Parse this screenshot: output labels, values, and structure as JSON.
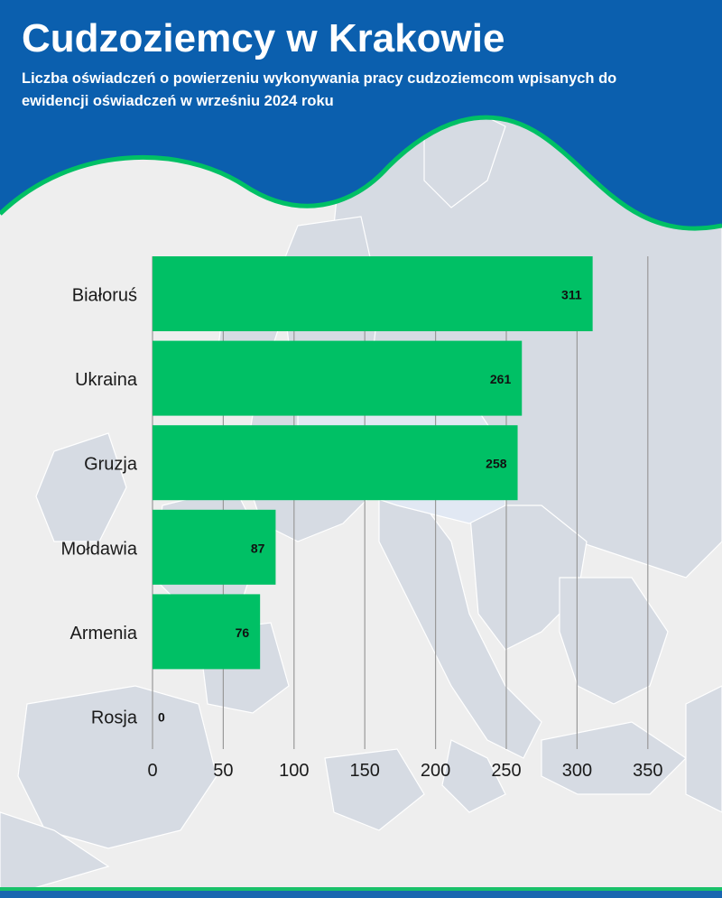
{
  "header": {
    "title": "Cudzoziemcy w Krakowie",
    "subtitle": "Liczba oświadczeń o powierzeniu wykonywania pracy cudzoziemcom wpisanych do ewidencji oświadczeń w wrześniu 2024 roku"
  },
  "colors": {
    "header_blue": "#0b5fae",
    "accent_green": "#00c065",
    "bar_green": "#00c065",
    "map_land": "#d6dbe3",
    "map_highlight": "#e0e7f2",
    "background": "#eeeeee",
    "grid": "#999999"
  },
  "chart_data": {
    "type": "bar",
    "orientation": "horizontal",
    "categories": [
      "Białoruś",
      "Ukraina",
      "Gruzja",
      "Mołdawia",
      "Armenia",
      "Rosja"
    ],
    "values": [
      311,
      261,
      258,
      87,
      76,
      0
    ],
    "xlim": [
      0,
      350
    ],
    "xticks": [
      0,
      50,
      100,
      150,
      200,
      250,
      300,
      350
    ],
    "grid": "vertical",
    "legend": "none",
    "data_labels": true
  }
}
